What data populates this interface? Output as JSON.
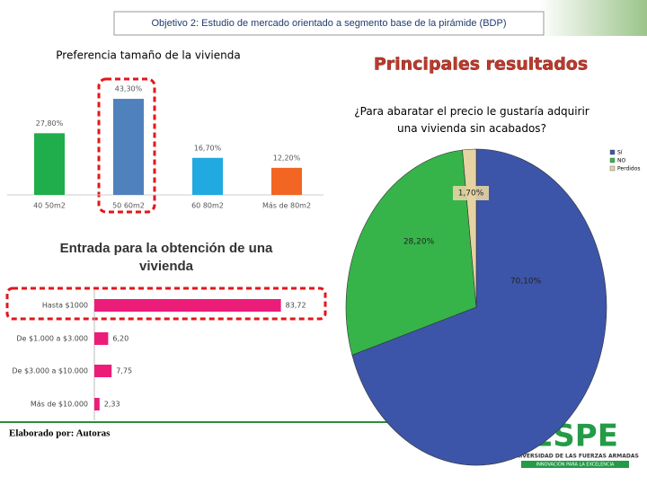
{
  "header": {
    "title": "Objetivo 2: Estudio de mercado orientado a segmento base de la pirámide (BDP)"
  },
  "heading": "Principales resultados",
  "footer": {
    "credit": "Elaborado por: Autoras"
  },
  "logo": {
    "name": "ESPE",
    "subtitle": "UNIVERSIDAD DE LAS FUERZAS ARMADAS",
    "motto": "INNOVACIÓN PARA LA EXCELENCIA"
  },
  "chart_data": [
    {
      "type": "bar",
      "title": "Preferencia tamaño de la vivienda",
      "categories": [
        "40 50m2",
        "50 60m2",
        "60 80m2",
        "Más de 80m2"
      ],
      "values": [
        27.8,
        43.3,
        16.7,
        12.2
      ],
      "value_labels": [
        "27,80%",
        "43,30%",
        "16,70%",
        "12,20%"
      ],
      "colors": [
        "#1fae4b",
        "#4f81bd",
        "#21a9e1",
        "#f26522"
      ]
    },
    {
      "type": "hbar",
      "title": "Entrada para la obtención de una vivienda",
      "categories": [
        "Hasta $1000",
        "De $1.000 a $3.000",
        "De $3.000 a $10.000",
        "Más de $10.000"
      ],
      "values": [
        83.72,
        6.2,
        7.75,
        2.33
      ],
      "value_labels": [
        "83,72",
        "6,20",
        "7,75",
        "2,33"
      ],
      "color": "#ec1c79"
    },
    {
      "type": "pie",
      "title": "¿Para abaratar el precio le gustaría adquirir una vivienda sin acabados?",
      "categories": [
        "Sí",
        "NO",
        "Perdidos"
      ],
      "values": [
        70.1,
        28.2,
        1.7
      ],
      "value_labels": [
        "70,10%",
        "28,20%",
        "1,70%"
      ],
      "colors": [
        "#3c55a8",
        "#36b44a",
        "#e6d3a3"
      ]
    }
  ]
}
